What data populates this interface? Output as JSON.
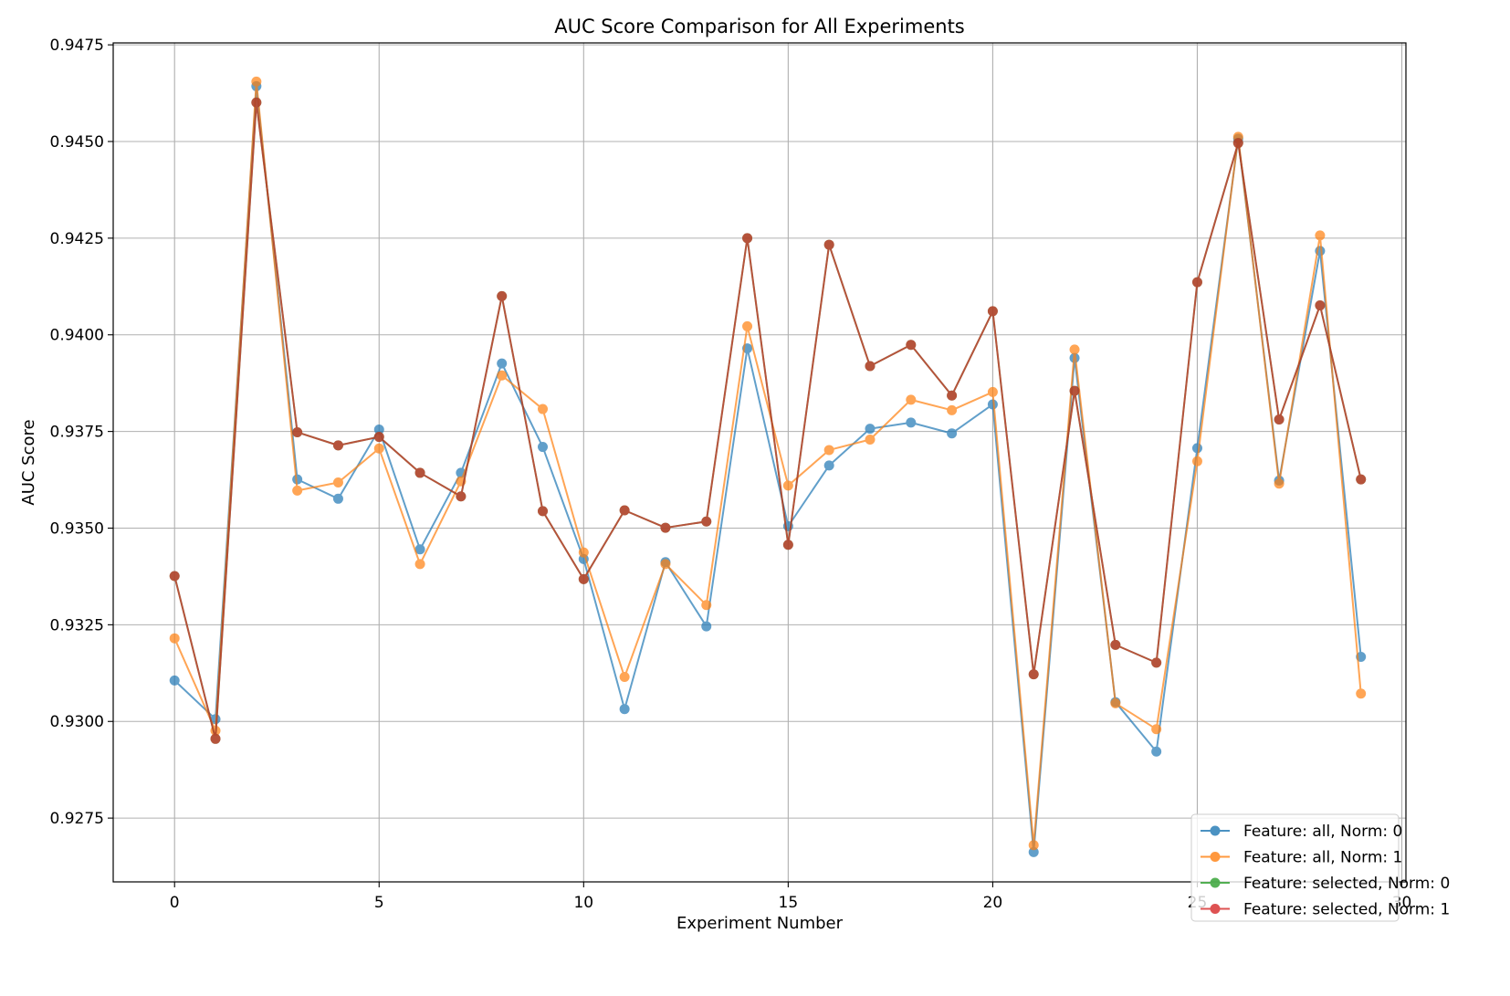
{
  "chart_data": {
    "type": "line",
    "title": "AUC Score Comparison for All Experiments",
    "xlabel": "Experiment Number",
    "ylabel": "AUC Score",
    "xlim": [
      -1.5,
      30.1
    ],
    "ylim": [
      0.92585,
      0.94755
    ],
    "x_ticks": [
      0,
      5,
      10,
      15,
      20,
      25,
      30
    ],
    "y_ticks": [
      0.9275,
      0.93,
      0.9325,
      0.935,
      0.9375,
      0.94,
      0.9425,
      0.945,
      0.9475
    ],
    "y_tick_labels": [
      "0.9275",
      "0.9300",
      "0.9325",
      "0.9350",
      "0.9375",
      "0.9400",
      "0.9425",
      "0.9450",
      "0.9475"
    ],
    "grid": true,
    "legend_position": "bottom-right",
    "x": [
      0,
      1,
      2,
      3,
      4,
      5,
      6,
      7,
      8,
      9,
      10,
      11,
      12,
      13,
      14,
      15,
      16,
      17,
      18,
      19,
      20,
      21,
      22,
      23,
      24,
      25,
      26,
      27,
      28,
      29
    ],
    "series": [
      {
        "name": "Feature: all, Norm: 0",
        "color": "#1f77b4",
        "values": [
          0.93106,
          0.93006,
          0.94643,
          0.93626,
          0.93576,
          0.93755,
          0.93445,
          0.93643,
          0.93926,
          0.9371,
          0.9342,
          0.93032,
          0.93412,
          0.93246,
          0.93965,
          0.93505,
          0.93662,
          0.93757,
          0.93773,
          0.93745,
          0.9382,
          0.92662,
          0.9394,
          0.9305,
          0.92922,
          0.93707,
          0.94507,
          0.93623,
          0.94217,
          0.93167
        ]
      },
      {
        "name": "Feature: all, Norm: 1",
        "color": "#ff7f0e",
        "values": [
          0.93215,
          0.92976,
          0.94655,
          0.93597,
          0.93618,
          0.93706,
          0.93407,
          0.93621,
          0.93895,
          0.93808,
          0.93437,
          0.93115,
          0.93407,
          0.93301,
          0.94022,
          0.9361,
          0.93702,
          0.93729,
          0.93832,
          0.93805,
          0.93852,
          0.9268,
          0.93962,
          0.93047,
          0.9298,
          0.93673,
          0.94512,
          0.93615,
          0.94257,
          0.93072
        ]
      },
      {
        "name": "Feature: selected, Norm: 0",
        "color": "#2ca02c",
        "values": [
          0.93376,
          0.92955,
          0.94601,
          0.93748,
          0.93714,
          0.93736,
          0.93643,
          0.93582,
          0.941,
          0.93544,
          0.93368,
          0.93546,
          0.93501,
          0.93517,
          0.9425,
          0.93457,
          0.94233,
          0.93919,
          0.93974,
          0.93843,
          0.94061,
          0.93122,
          0.93855,
          0.93198,
          0.93152,
          0.94136,
          0.94496,
          0.93781,
          0.94076,
          0.93626
        ]
      },
      {
        "name": "Feature: selected, Norm: 1",
        "color": "#d62728",
        "values": [
          0.93376,
          0.92955,
          0.94601,
          0.93748,
          0.93714,
          0.93736,
          0.93643,
          0.93582,
          0.941,
          0.93544,
          0.93368,
          0.93546,
          0.93501,
          0.93517,
          0.9425,
          0.93457,
          0.94233,
          0.93919,
          0.93974,
          0.93843,
          0.94061,
          0.93122,
          0.93855,
          0.93198,
          0.93152,
          0.94136,
          0.94496,
          0.93781,
          0.94076,
          0.93626
        ]
      }
    ]
  }
}
